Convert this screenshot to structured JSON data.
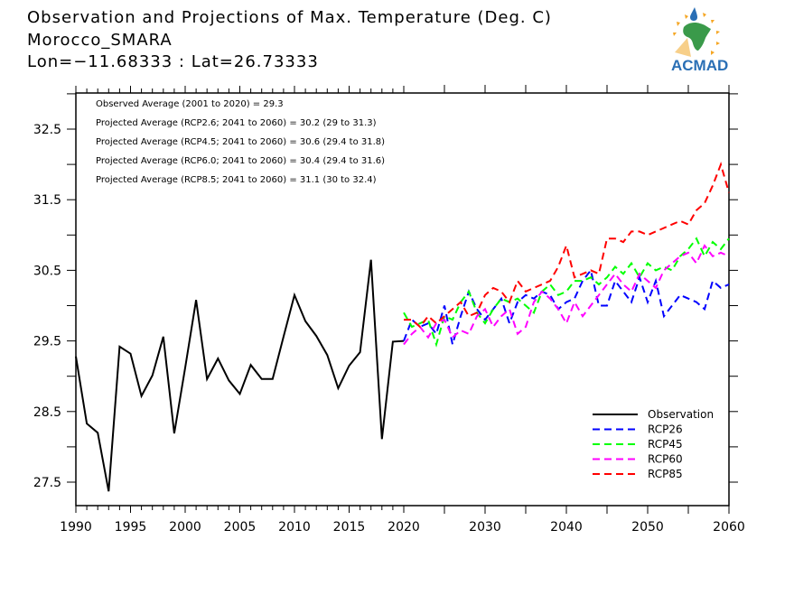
{
  "header": {
    "title": "Observation and Projections of Max. Temperature (Deg. C)",
    "station": "Morocco_SMARA",
    "coords": "Lon=−11.68333 : Lat=26.73333"
  },
  "logo": {
    "text": "ACMAD",
    "colors": {
      "text": "#2a6fb5",
      "africa": "#3a9a4a",
      "sun": "#f5a623",
      "drop": "#2a6fb5"
    }
  },
  "chart_data": {
    "type": "line",
    "title": "Observation and Projections of Max. Temperature (Deg. C)",
    "xlabel": "",
    "ylabel": "",
    "xlim": [
      1990,
      2060
    ],
    "ylim": [
      27.15,
      33.0
    ],
    "x_ticks": [
      1990,
      1995,
      2000,
      2005,
      2010,
      2015,
      2020,
      2030,
      2040,
      2050,
      2060
    ],
    "y_ticks": [
      27.5,
      28.5,
      29.5,
      30.5,
      31.5,
      32.5
    ],
    "y_minor_ticks": [
      28.0,
      29.0,
      30.0,
      31.0,
      32.0,
      33.0
    ],
    "grid": false,
    "legend_position": "bottom-right",
    "annotations": [
      "Observed Average (2001 to 2020) = 29.3",
      "Projected Average (RCP2.6; 2041 to 2060) = 30.2 (29 to 31.3)",
      "Projected Average (RCP4.5; 2041 to 2060) = 30.6 (29.4 to 31.8)",
      "Projected Average (RCP6.0; 2041 to 2060) = 30.4 (29.4 to 31.6)",
      "Projected Average (RCP8.5; 2041 to 2060) = 31.1 (30 to 32.4)"
    ],
    "series": [
      {
        "name": "Observation",
        "color": "#000000",
        "dashed": false,
        "x_start": 1990,
        "values": [
          29.28,
          28.33,
          28.2,
          27.37,
          29.42,
          29.32,
          28.72,
          29.01,
          29.56,
          28.19,
          29.12,
          30.08,
          28.96,
          29.25,
          28.94,
          28.75,
          29.16,
          28.96,
          28.96,
          29.56,
          30.15,
          29.78,
          29.57,
          29.3,
          28.83,
          29.15,
          29.34,
          30.65,
          28.11,
          29.49,
          29.5
        ]
      },
      {
        "name": "RCP26",
        "color": "#0000ff",
        "dashed": true,
        "x_start": 2020,
        "values": [
          29.5,
          29.8,
          29.7,
          29.75,
          29.6,
          30.0,
          29.45,
          29.85,
          30.2,
          29.95,
          29.8,
          29.95,
          30.1,
          29.75,
          30.05,
          30.15,
          30.1,
          30.2,
          30.15,
          29.95,
          30.05,
          30.1,
          30.35,
          30.5,
          30.0,
          30.0,
          30.35,
          30.2,
          30.05,
          30.4,
          30.05,
          30.35,
          29.85,
          30.0,
          30.15,
          30.1,
          30.05,
          29.95,
          30.35,
          30.25,
          30.3
        ]
      },
      {
        "name": "RCP45",
        "color": "#00ff00",
        "dashed": true,
        "x_start": 2020,
        "values": [
          29.9,
          29.7,
          29.75,
          29.8,
          29.45,
          29.85,
          29.8,
          30.05,
          30.2,
          29.9,
          29.75,
          29.95,
          30.1,
          30.05,
          30.1,
          30.0,
          29.9,
          30.2,
          30.3,
          30.15,
          30.2,
          30.35,
          30.35,
          30.4,
          30.3,
          30.4,
          30.55,
          30.45,
          30.6,
          30.4,
          30.6,
          30.5,
          30.55,
          30.5,
          30.7,
          30.8,
          30.95,
          30.7,
          30.9,
          30.8,
          30.95
        ]
      },
      {
        "name": "RCP60",
        "color": "#ff00ff",
        "dashed": true,
        "x_start": 2020,
        "values": [
          29.45,
          29.6,
          29.7,
          29.55,
          29.75,
          29.8,
          29.55,
          29.65,
          29.6,
          29.85,
          29.95,
          29.7,
          29.85,
          29.95,
          29.6,
          29.7,
          30.05,
          30.2,
          30.1,
          29.95,
          29.75,
          30.05,
          29.85,
          30.0,
          30.15,
          30.3,
          30.45,
          30.3,
          30.2,
          30.45,
          30.35,
          30.25,
          30.5,
          30.6,
          30.7,
          30.75,
          30.6,
          30.85,
          30.7,
          30.75,
          30.7
        ]
      },
      {
        "name": "RCP85",
        "color": "#ff0000",
        "dashed": true,
        "x_start": 2020,
        "values": [
          29.8,
          29.8,
          29.7,
          29.85,
          29.75,
          29.85,
          29.95,
          30.05,
          29.85,
          29.9,
          30.15,
          30.25,
          30.2,
          30.05,
          30.35,
          30.2,
          30.25,
          30.3,
          30.35,
          30.55,
          30.85,
          30.4,
          30.45,
          30.5,
          30.45,
          30.95,
          30.95,
          30.9,
          31.05,
          31.05,
          31.0,
          31.05,
          31.1,
          31.15,
          31.2,
          31.15,
          31.35,
          31.45,
          31.7,
          32.0,
          31.6
        ]
      }
    ]
  }
}
